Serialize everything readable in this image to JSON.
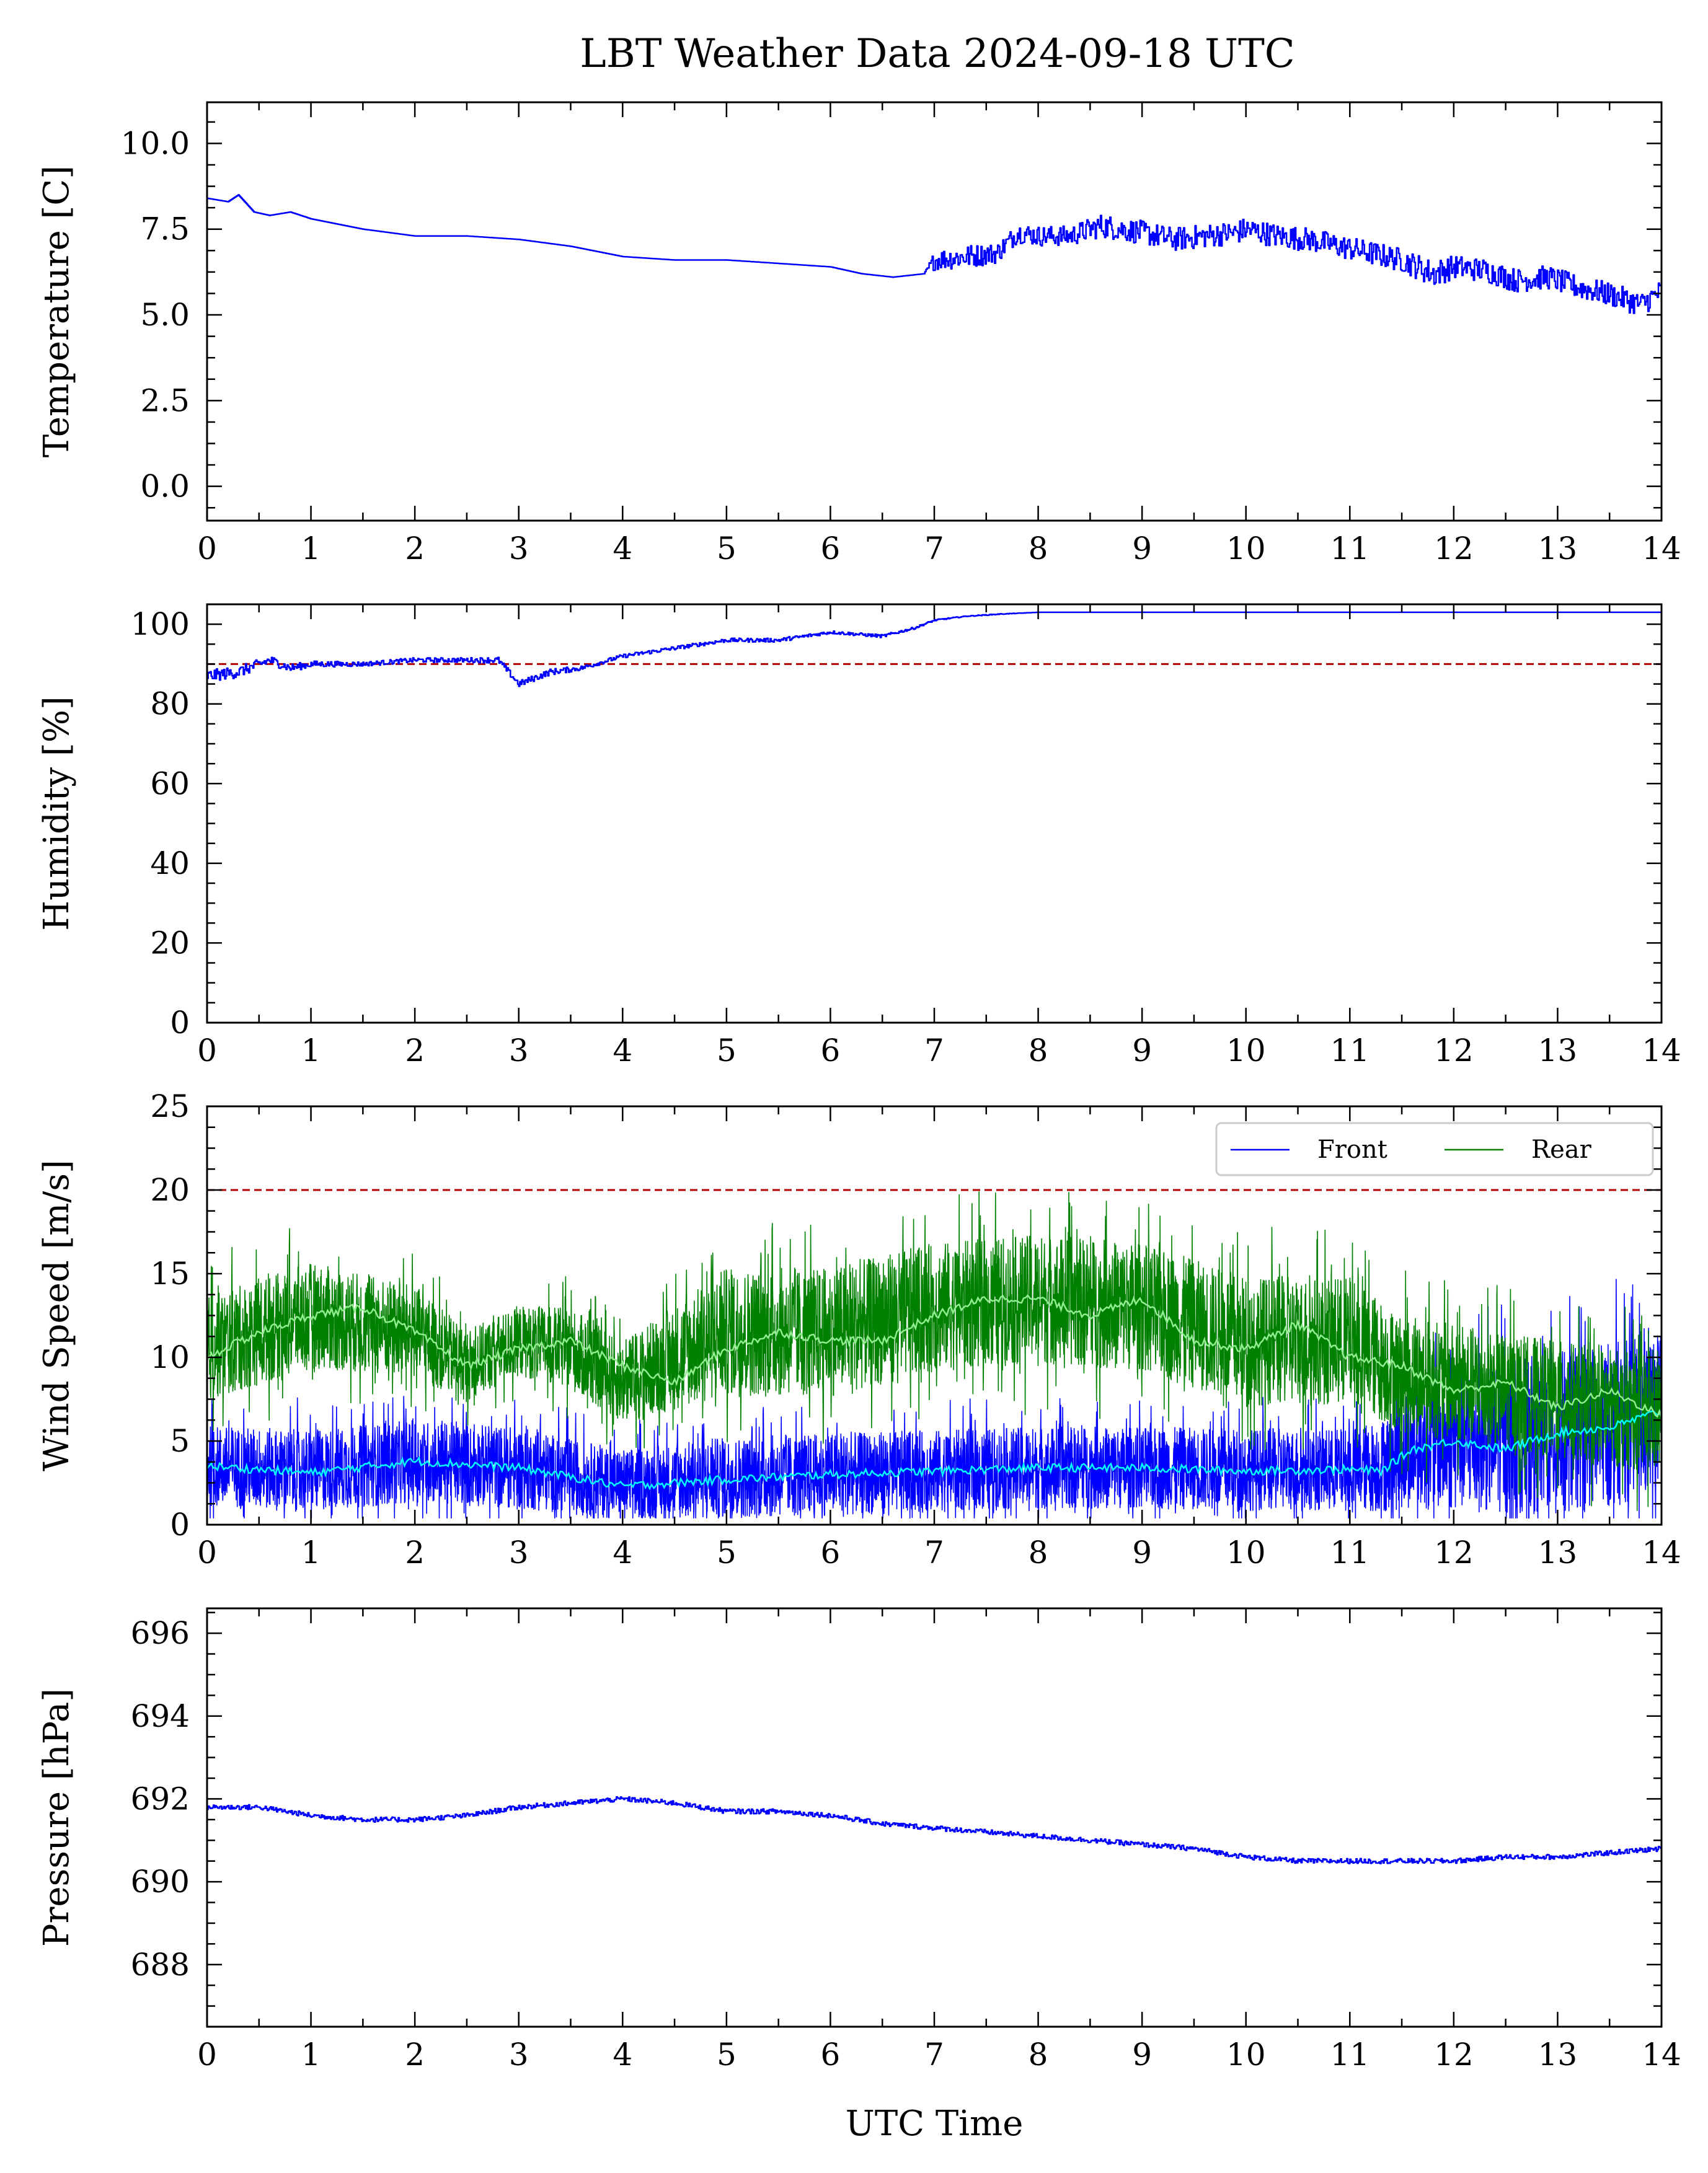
{
  "title": "LBT Weather Data 2024-09-18 UTC",
  "colors": {
    "front": "#0000ff",
    "rear": "#008000",
    "front_mean": "#00ffff",
    "rear_mean": "#90ee90",
    "threshold": "#b00000"
  },
  "chart_data": [
    {
      "type": "line",
      "ylabel": "Temperature [C]",
      "xlabel": "",
      "xlim": [
        0,
        14
      ],
      "ylim": [
        -1.0,
        11.2
      ],
      "xticks": [
        "0",
        "1",
        "2",
        "3",
        "4",
        "5",
        "6",
        "7",
        "8",
        "9",
        "10",
        "11",
        "12",
        "13",
        "14"
      ],
      "yticks": [
        "0.0",
        "2.5",
        "5.0",
        "7.5",
        "10.0"
      ],
      "series": [
        {
          "name": "",
          "color": "#0000ff",
          "x": [
            0,
            0.2,
            0.3,
            0.45,
            0.6,
            0.8,
            1.0,
            1.5,
            2.0,
            2.5,
            3.0,
            3.5,
            4.0,
            4.5,
            5.0,
            5.5,
            6.0,
            6.3,
            6.6,
            6.9,
            7.0,
            7.3,
            7.6,
            7.8,
            8.0,
            8.3,
            8.6,
            8.8,
            9.0,
            9.3,
            9.6,
            9.9,
            10.0,
            10.3,
            10.6,
            10.9,
            11.2,
            11.5,
            11.8,
            12.0,
            12.3,
            12.6,
            12.9,
            13.2,
            13.5,
            13.8,
            14.0
          ],
          "y": [
            8.4,
            8.3,
            8.5,
            8.0,
            7.9,
            8.0,
            7.8,
            7.5,
            7.3,
            7.3,
            7.2,
            7.0,
            6.7,
            6.6,
            6.6,
            6.5,
            6.4,
            6.2,
            6.1,
            6.2,
            6.6,
            6.7,
            6.8,
            7.4,
            7.3,
            7.3,
            7.6,
            7.5,
            7.4,
            7.2,
            7.3,
            7.4,
            7.5,
            7.3,
            7.2,
            7.0,
            6.8,
            6.6,
            6.2,
            6.4,
            6.3,
            6.0,
            6.1,
            5.8,
            5.6,
            5.3,
            5.7
          ],
          "noise": [
            0,
            0,
            0,
            0,
            0,
            0,
            0,
            0,
            0,
            0,
            0,
            0,
            0,
            0,
            0,
            0,
            0,
            0,
            0,
            0,
            0.3,
            0.35,
            0.3,
            0.3,
            0.3,
            0.3,
            0.35,
            0.35,
            0.35,
            0.35,
            0.35,
            0.35,
            0.35,
            0.35,
            0.35,
            0.35,
            0.35,
            0.35,
            0.4,
            0.35,
            0.35,
            0.35,
            0.35,
            0.35,
            0.35,
            0.35,
            0.35
          ]
        }
      ]
    },
    {
      "type": "line",
      "ylabel": "Humidity [%]",
      "xlabel": "",
      "xlim": [
        0,
        14
      ],
      "ylim": [
        0,
        105
      ],
      "xticks": [
        "0",
        "1",
        "2",
        "3",
        "4",
        "5",
        "6",
        "7",
        "8",
        "9",
        "10",
        "11",
        "12",
        "13",
        "14"
      ],
      "yticks": [
        "0",
        "20",
        "40",
        "60",
        "80",
        "100"
      ],
      "threshold": 90,
      "series": [
        {
          "name": "",
          "color": "#0000ff",
          "x": [
            0,
            0.3,
            0.6,
            0.8,
            1.0,
            1.5,
            2.0,
            2.5,
            2.8,
            3.0,
            3.3,
            3.6,
            4.0,
            4.5,
            5.0,
            5.5,
            6.0,
            6.5,
            6.8,
            7.0,
            7.3,
            7.6,
            8.0,
            9.0,
            10.0,
            11.0,
            12.0,
            13.0,
            14.0
          ],
          "y": [
            87,
            88,
            91,
            89,
            90,
            90,
            91,
            91,
            91,
            85,
            88,
            89,
            92,
            94,
            96,
            96,
            98,
            97,
            99,
            101,
            102,
            102.5,
            103,
            103,
            103,
            103,
            103,
            103,
            103
          ],
          "noise": [
            1.5,
            1.5,
            1.2,
            1.0,
            0.8,
            0.6,
            0.6,
            0.6,
            0.8,
            0.8,
            0.8,
            0.6,
            0.5,
            0.5,
            0.5,
            0.5,
            0.4,
            0.4,
            0.3,
            0.2,
            0.1,
            0.1,
            0,
            0,
            0,
            0,
            0,
            0,
            0
          ]
        }
      ]
    },
    {
      "type": "line",
      "ylabel": "Wind Speed [m/s]",
      "xlabel": "",
      "xlim": [
        0,
        14
      ],
      "ylim": [
        0,
        25
      ],
      "xticks": [
        "0",
        "1",
        "2",
        "3",
        "4",
        "5",
        "6",
        "7",
        "8",
        "9",
        "10",
        "11",
        "12",
        "13",
        "14"
      ],
      "yticks": [
        "0",
        "5",
        "10",
        "15",
        "20",
        "25"
      ],
      "threshold": 20,
      "legend": {
        "position": "top-right",
        "entries": [
          "Front",
          "Rear"
        ]
      },
      "series": [
        {
          "name": "Front",
          "color": "#0000ff",
          "x": [
            0,
            1,
            2,
            3,
            4,
            5,
            6,
            7,
            8,
            9,
            10,
            11,
            11.3,
            11.6,
            12,
            13,
            14
          ],
          "y": [
            3.5,
            3.2,
            3.8,
            3.4,
            2.4,
            2.8,
            3.0,
            3.2,
            3.4,
            3.4,
            3.3,
            3.3,
            3.5,
            4.5,
            5.0,
            5.5,
            6.5
          ],
          "spread": [
            3.5,
            3.5,
            3.5,
            3.5,
            3.0,
            3.5,
            3.5,
            3.5,
            3.5,
            3.5,
            3.5,
            3.5,
            4.0,
            5.0,
            6.0,
            7.0,
            7.0
          ]
        },
        {
          "name": "Rear",
          "color": "#008000",
          "x": [
            0,
            0.5,
            1,
            2,
            2.5,
            3,
            3.5,
            4,
            4.5,
            5,
            6,
            7,
            8,
            9,
            10,
            11,
            11.5,
            12,
            13,
            14
          ],
          "y": [
            10.5,
            11.5,
            12.5,
            11.5,
            9.5,
            11.0,
            10.5,
            8.5,
            10.0,
            11.5,
            11.5,
            13.0,
            13.5,
            13.0,
            11.0,
            11.0,
            9.0,
            8.5,
            7.5,
            6.5
          ],
          "spread": [
            4.5,
            4.5,
            4.5,
            4.0,
            3.0,
            3.0,
            3.5,
            3.5,
            4.5,
            5.5,
            5.5,
            5.5,
            5.5,
            5.5,
            5.5,
            5.5,
            5.0,
            5.0,
            5.0,
            5.0
          ]
        }
      ],
      "mean_lines": [
        {
          "name": "Front mean",
          "color": "#00ffff",
          "x": [
            0,
            1,
            2,
            3,
            4,
            5,
            6,
            7,
            8,
            9,
            10,
            11,
            11.3,
            11.6,
            12,
            12.5,
            13,
            13.5,
            14
          ],
          "y": [
            3.5,
            3.1,
            3.8,
            3.4,
            2.3,
            2.7,
            3.0,
            3.2,
            3.4,
            3.4,
            3.2,
            3.3,
            3.2,
            4.5,
            5.0,
            4.5,
            5.5,
            5.8,
            6.8
          ]
        },
        {
          "name": "Rear mean",
          "color": "#90ee90",
          "x": [
            0,
            0.5,
            1,
            1.5,
            2,
            2.5,
            3,
            3.5,
            4,
            4.5,
            5,
            5.5,
            6,
            6.5,
            7,
            7.5,
            8,
            8.5,
            9,
            9.5,
            10,
            10.5,
            11,
            11.5,
            12,
            12.5,
            13,
            13.5,
            14
          ],
          "y": [
            10.0,
            11.5,
            12.5,
            13.0,
            11.5,
            9.5,
            10.5,
            11.0,
            9.5,
            8.5,
            10.5,
            11.5,
            11.0,
            11.0,
            12.5,
            13.5,
            13.5,
            12.5,
            13.5,
            11.0,
            10.5,
            12.0,
            10.0,
            9.5,
            8.0,
            8.5,
            7.0,
            8.0,
            6.5
          ]
        }
      ]
    },
    {
      "type": "line",
      "ylabel": "Pressure [hPa]",
      "xlabel": "UTC Time",
      "xlim": [
        0,
        14
      ],
      "ylim": [
        686.5,
        696.6
      ],
      "xticks": [
        "0",
        "1",
        "2",
        "3",
        "4",
        "5",
        "6",
        "7",
        "8",
        "9",
        "10",
        "11",
        "12",
        "13",
        "14"
      ],
      "yticks": [
        "688",
        "690",
        "692",
        "694",
        "696"
      ],
      "series": [
        {
          "name": "",
          "color": "#0000ff",
          "x": [
            0,
            0.5,
            1,
            1.5,
            2,
            2.5,
            3,
            3.5,
            4,
            4.5,
            5,
            5.5,
            6,
            6.5,
            7,
            7.5,
            8,
            8.5,
            9,
            9.5,
            10,
            10.5,
            11,
            11.5,
            12,
            12.5,
            13,
            13.5,
            14
          ],
          "y": [
            691.8,
            691.8,
            691.6,
            691.5,
            691.5,
            691.6,
            691.8,
            691.9,
            692.0,
            691.9,
            691.7,
            691.7,
            691.6,
            691.4,
            691.3,
            691.2,
            691.1,
            691.0,
            690.9,
            690.8,
            690.6,
            690.5,
            690.5,
            690.5,
            690.5,
            690.6,
            690.6,
            690.7,
            690.8
          ],
          "noise": [
            0.06,
            0.06,
            0.06,
            0.06,
            0.06,
            0.06,
            0.06,
            0.06,
            0.06,
            0.06,
            0.06,
            0.06,
            0.06,
            0.06,
            0.06,
            0.06,
            0.06,
            0.06,
            0.06,
            0.06,
            0.06,
            0.06,
            0.06,
            0.06,
            0.06,
            0.06,
            0.06,
            0.06,
            0.06
          ]
        }
      ]
    }
  ]
}
